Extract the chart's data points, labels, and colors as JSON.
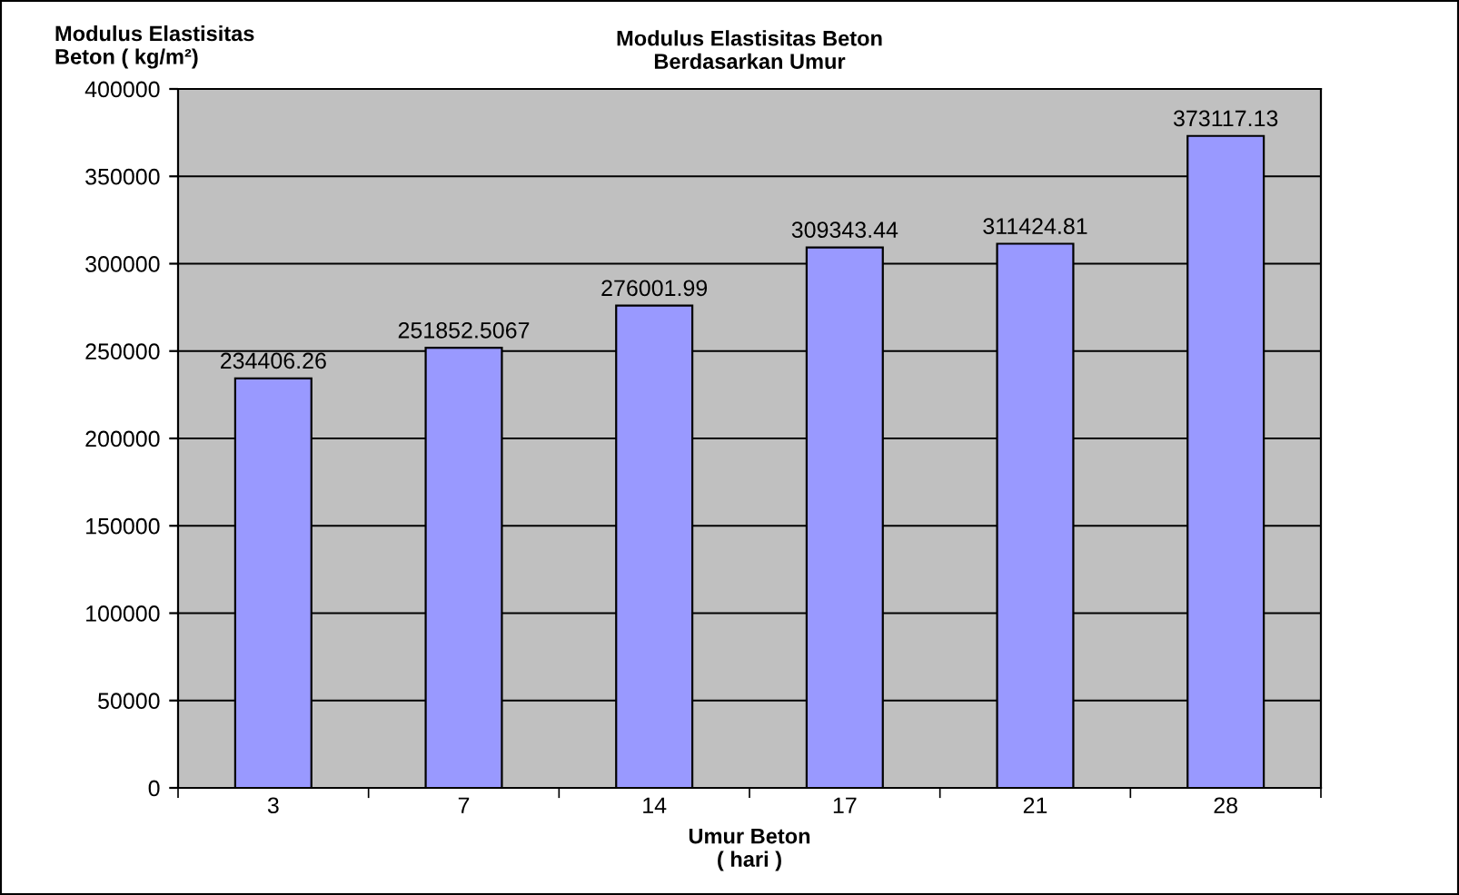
{
  "chart_data": {
    "type": "bar",
    "title": "Modulus Elastisitas Beton\nBerdasarkan Umur",
    "xlabel": "Umur Beton\n( hari )",
    "ylabel": "Modulus Elastisitas\nBeton ( kg/m²)",
    "categories": [
      "3",
      "7",
      "14",
      "17",
      "21",
      "28"
    ],
    "values": [
      234406.26,
      251852.5067,
      276001.99,
      309343.44,
      311424.81,
      373117.13
    ],
    "color": "#9999ff",
    "data_labels": true,
    "grid": "y",
    "legend": false,
    "ylim": [
      0,
      400000
    ],
    "yticks": [
      0,
      50000,
      100000,
      150000,
      200000,
      250000,
      300000,
      350000,
      400000
    ]
  }
}
